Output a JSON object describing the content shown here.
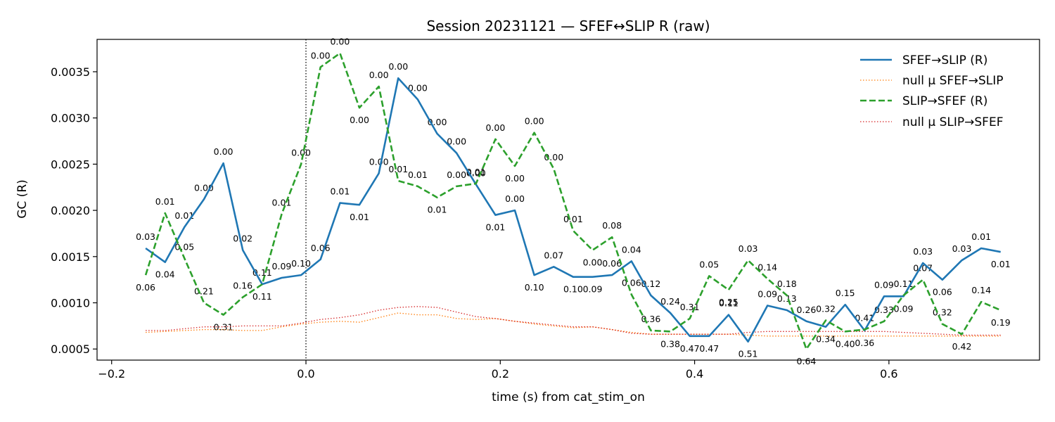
{
  "chart_data": {
    "type": "line",
    "title": "Session 20231121 — SFEF↔SLIP R (raw)",
    "xlabel": "time (s) from cat_stim_on",
    "ylabel": "GC (R)",
    "xlim": [
      -0.215,
      0.755
    ],
    "ylim": [
      0.00038,
      0.00385
    ],
    "xticks": [
      -0.2,
      0.0,
      0.2,
      0.4,
      0.6
    ],
    "xtick_labels": [
      "−0.2",
      "0.0",
      "0.2",
      "0.4",
      "0.6"
    ],
    "yticks": [
      0.0005,
      0.001,
      0.0015,
      0.002,
      0.0025,
      0.003,
      0.0035
    ],
    "ytick_labels": [
      "0.0005",
      "0.0010",
      "0.0015",
      "0.0020",
      "0.0025",
      "0.0030",
      "0.0035"
    ],
    "vline_x": 0.0,
    "grid": false,
    "legend_position": "top-right",
    "x": [
      -0.165,
      -0.145,
      -0.125,
      -0.105,
      -0.085,
      -0.065,
      -0.045,
      -0.025,
      -0.005,
      0.015,
      0.035,
      0.055,
      0.075,
      0.095,
      0.115,
      0.135,
      0.155,
      0.175,
      0.195,
      0.215,
      0.235,
      0.255,
      0.275,
      0.295,
      0.315,
      0.335,
      0.355,
      0.375,
      0.395,
      0.415,
      0.435,
      0.455,
      0.475,
      0.495,
      0.515,
      0.535,
      0.555,
      0.575,
      0.595,
      0.615,
      0.635,
      0.655,
      0.675,
      0.695,
      0.715
    ],
    "series": [
      {
        "name": "SFEF→SLIP (R)",
        "color": "#1f77b4",
        "style": "solid",
        "values": [
          0.00159,
          0.00144,
          0.00182,
          0.00212,
          0.00251,
          0.00157,
          0.0012,
          0.00127,
          0.0013,
          0.00147,
          0.00208,
          0.00206,
          0.0024,
          0.00343,
          0.0032,
          0.00283,
          0.00262,
          0.00228,
          0.00195,
          0.002,
          0.0013,
          0.00139,
          0.00128,
          0.00128,
          0.0013,
          0.00145,
          0.00108,
          0.00089,
          0.00064,
          0.00064,
          0.00087,
          0.00058,
          0.00097,
          0.00092,
          0.0008,
          0.00074,
          0.00098,
          0.0007,
          0.00107,
          0.00107,
          0.00143,
          0.00125,
          0.00146,
          0.00159,
          0.00155
        ],
        "labels": [
          "0.03",
          "0.04",
          "0.01",
          "0.00",
          "0.00",
          "0.02",
          "0.11",
          "0.09",
          "0.10",
          "0.06",
          "0.01",
          "0.01",
          "0.00",
          "0.00",
          "0.00",
          "0.00",
          "0.00",
          "0.00",
          "0.01",
          "0.00",
          "0.10",
          "0.07",
          "0.10",
          "0.09",
          "0.06",
          "0.04",
          "0.12",
          "0.24",
          "0.47",
          "0.47",
          "0.11",
          "0.51",
          "0.09",
          "0.13",
          "0.26",
          "0.34",
          "0.15",
          "0.36",
          "0.09",
          "0.09",
          "0.03",
          "0.06",
          "0.03",
          "0.01",
          "0.01"
        ]
      },
      {
        "name": "null μ SFEF→SLIP",
        "color": "#ff7f0e",
        "style": "dotted",
        "values": [
          0.00068,
          0.00069,
          0.0007,
          0.00071,
          0.00071,
          0.0007,
          0.0007,
          0.00074,
          0.00077,
          0.00079,
          0.0008,
          0.00079,
          0.00084,
          0.00089,
          0.00087,
          0.00087,
          0.00083,
          0.00082,
          0.00083,
          0.0008,
          0.00077,
          0.00075,
          0.00073,
          0.00074,
          0.00071,
          0.00068,
          0.00066,
          0.00066,
          0.00066,
          0.00066,
          0.00066,
          0.00065,
          0.00064,
          0.00064,
          0.00064,
          0.00064,
          0.00064,
          0.00064,
          0.00064,
          0.00064,
          0.00064,
          0.00064,
          0.00064,
          0.00064,
          0.00064
        ]
      },
      {
        "name": "SLIP→SFEF (R)",
        "color": "#2ca02c",
        "style": "dashed",
        "values": [
          0.0013,
          0.00197,
          0.00148,
          0.001,
          0.00087,
          0.00106,
          0.0012,
          0.00196,
          0.0025,
          0.00355,
          0.0037,
          0.00311,
          0.00334,
          0.00232,
          0.00226,
          0.00214,
          0.00226,
          0.00229,
          0.00277,
          0.00248,
          0.00284,
          0.00245,
          0.00178,
          0.00157,
          0.00171,
          0.00109,
          0.0007,
          0.00069,
          0.00083,
          0.00129,
          0.00114,
          0.00146,
          0.00126,
          0.00108,
          0.0005,
          0.00081,
          0.00069,
          0.00071,
          0.0008,
          0.00108,
          0.00125,
          0.00077,
          0.00066,
          0.00101,
          0.00092
        ],
        "labels": [
          "0.06",
          "0.01",
          "0.05",
          "0.21",
          "0.31",
          "0.16",
          "0.11",
          "0.01",
          "0.00",
          "0.00",
          "0.00",
          "0.00",
          "0.00",
          "0.01",
          "0.01",
          "0.01",
          "0.00",
          "0.01",
          "0.00",
          "0.00",
          "0.00",
          "0.00",
          "0.01",
          "0.00",
          "0.08",
          "0.06",
          "0.36",
          "0.38",
          "0.31",
          "0.05",
          "0.25",
          "0.03",
          "0.14",
          "0.18",
          "0.64",
          "0.32",
          "0.40",
          "0.41",
          "0.33",
          "0.11",
          "0.07",
          "0.32",
          "0.42",
          "0.14",
          "0.19"
        ]
      },
      {
        "name": "null μ SLIP→SFEF",
        "color": "#d62728",
        "style": "dotted",
        "values": [
          0.0007,
          0.0007,
          0.00072,
          0.00074,
          0.00074,
          0.00075,
          0.00075,
          0.00075,
          0.00078,
          0.00082,
          0.00084,
          0.00087,
          0.00092,
          0.00095,
          0.00096,
          0.00095,
          0.0009,
          0.00085,
          0.00083,
          0.0008,
          0.00078,
          0.00076,
          0.00074,
          0.00074,
          0.00071,
          0.00067,
          0.00066,
          0.00066,
          0.00066,
          0.00066,
          0.00066,
          0.00068,
          0.00069,
          0.00069,
          0.00069,
          0.00069,
          0.00069,
          0.00069,
          0.00069,
          0.00068,
          0.00067,
          0.00066,
          0.00065,
          0.00065,
          0.00065
        ]
      }
    ]
  }
}
